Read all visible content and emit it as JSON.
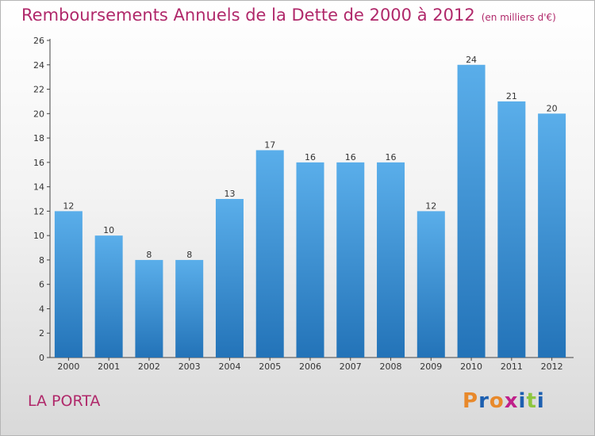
{
  "header": {
    "title": "Remboursements Annuels de la Dette de 2000 à 2012",
    "subtitle": "(en milliers d'€)"
  },
  "footer": {
    "commune": "LA PORTA",
    "logo_text": "Proxiti"
  },
  "colors": {
    "title": "#b0286a",
    "bar_light": "#5aaeea",
    "bar_dark": "#2373b8",
    "logo": [
      "#e8892b",
      "#1c5fb0",
      "#e8892b",
      "#c0208a",
      "#1c5fb0",
      "#8dc63f",
      "#1c5fb0"
    ]
  },
  "chart_data": {
    "type": "bar",
    "categories": [
      "2000",
      "2001",
      "2002",
      "2003",
      "2004",
      "2005",
      "2006",
      "2007",
      "2008",
      "2009",
      "2010",
      "2011",
      "2012"
    ],
    "values": [
      12,
      10,
      8,
      8,
      13,
      17,
      16,
      16,
      16,
      12,
      24,
      21,
      20
    ],
    "title": "Remboursements Annuels de la Dette de 2000 à 2012",
    "subtitle": "(en milliers d'€)",
    "ylim": [
      0,
      26
    ],
    "yticks": [
      0,
      2,
      4,
      6,
      8,
      10,
      12,
      14,
      16,
      18,
      20,
      22,
      24,
      26
    ],
    "grid": false,
    "legend": "none"
  }
}
